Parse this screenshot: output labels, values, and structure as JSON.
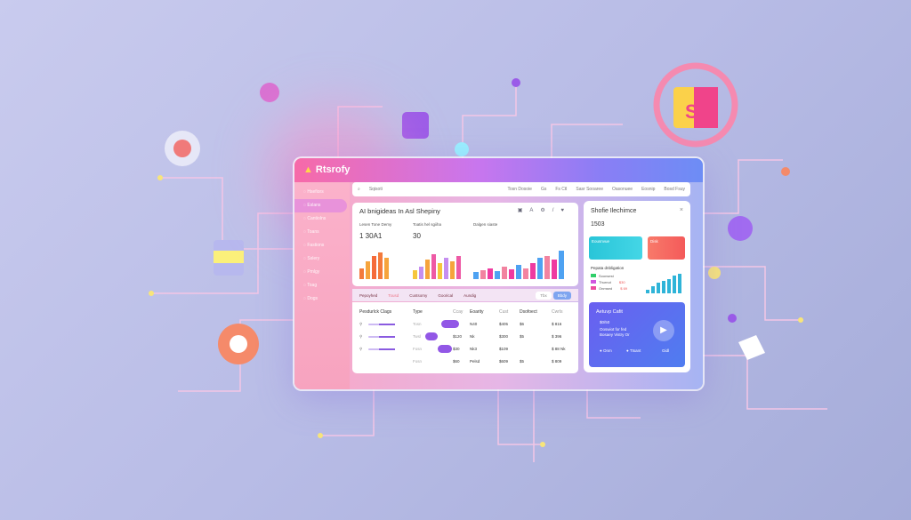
{
  "app": {
    "logo": "Rtsrofy"
  },
  "sidebar": {
    "items": [
      {
        "label": "Hsefiors"
      },
      {
        "label": "Eslans",
        "active": true
      },
      {
        "label": "Cantiolns"
      },
      {
        "label": "Toans"
      },
      {
        "label": "Fastions"
      },
      {
        "label": "Sslery"
      },
      {
        "label": "Pmlgy"
      },
      {
        "label": "Toag"
      },
      {
        "label": "Dogs"
      }
    ]
  },
  "search": {
    "placeholder": "Sqisoti"
  },
  "toolbar": [
    "Tosn Dosoie",
    "Gs",
    "Fs Ctl",
    "Sasr Sooaree",
    "Oasonuee",
    "Eosnip",
    "Bosd Fsuy"
  ],
  "main": {
    "title": "AI bnigideas In Asl Shepiny",
    "cards": [
      {
        "label": "Lesen Tone Demy",
        "value": "1 30A1"
      },
      {
        "label": "Toatis hel sgiiha",
        "value": "30"
      },
      {
        "label": "Dalgen siaste",
        "value": ""
      }
    ]
  },
  "chart_colors": {
    "card1": [
      "#f37a3c",
      "#f6a43c",
      "#f56b3a"
    ],
    "card2": [
      "#f6c63c",
      "#c58ef0",
      "#f6a43c",
      "#ee5aa5"
    ],
    "card3": [
      "#4ea2f2",
      "#f283a0",
      "#ef3aa0"
    ]
  },
  "tabs": {
    "items": [
      "Pepoyhed",
      "Tousd",
      "Custsomy",
      "Goorical",
      "Aundig"
    ],
    "buttons": [
      "Tbx",
      "Bbdy"
    ]
  },
  "table": {
    "headers": [
      "Pesdurlck Clags",
      "Type",
      "Ccay",
      "Eoarity",
      "Cust",
      "Dsofoect",
      "Cwrls"
    ],
    "rows": [
      [
        "Tosn",
        "",
        "N40",
        "$405",
        "$6",
        "$ 816"
      ],
      [
        "Twsl",
        "$120",
        "Nk",
        "$300",
        "$5",
        "$ 396"
      ],
      [
        "Fosn",
        "$30",
        "Nk3",
        "$109",
        "",
        "$ 88 Nk"
      ],
      [
        "Fosn",
        "$60",
        "Pelsd",
        "$609",
        "$5",
        "$ 809"
      ]
    ]
  },
  "right": {
    "title": "Shofie Ilechimce",
    "value": "1503",
    "kpi1": "Eousnvue",
    "kpi2": "Disk",
    "section": "Pepata dnbligation",
    "legend": [
      {
        "label": "Soonsest",
        "value": "",
        "color": "#2fcf6a"
      },
      {
        "label": "Thurnut",
        "value": "$30",
        "color": "#d056e0"
      },
      {
        "label": "Onmsed",
        "value": "$ 69",
        "color": "#ee4aa0"
      }
    ],
    "promo": {
      "title": "Aetuvp Cafit",
      "amount": "$0/50",
      "line1": "Ooswiot for fed",
      "line2": "Bosaey Vistry Or",
      "opt1": "Onm",
      "opt2": "Ttsant",
      "opt3": "Gidl"
    }
  }
}
